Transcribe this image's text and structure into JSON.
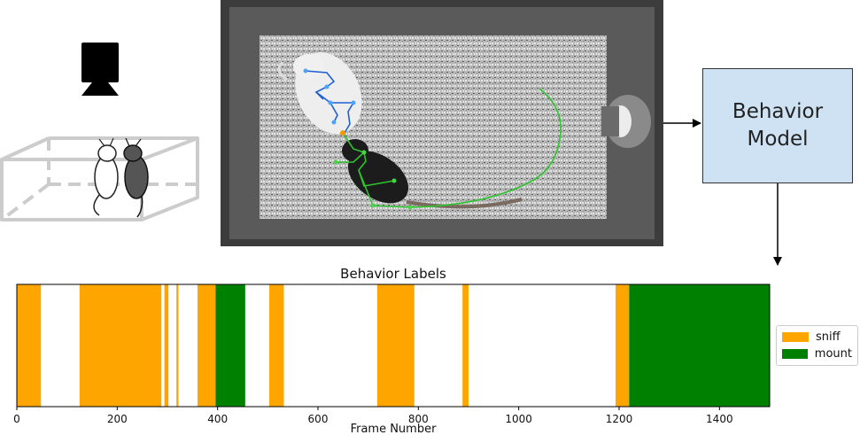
{
  "diagram": {
    "model_box": {
      "line1": "Behavior",
      "line2": "Model"
    }
  },
  "chart_data": {
    "type": "bar",
    "title": "Behavior Labels",
    "xlabel": "Frame Number",
    "ylabel": "",
    "xlim": [
      0,
      1500
    ],
    "xticks": [
      0,
      200,
      400,
      600,
      800,
      1000,
      1200,
      1400
    ],
    "series": [
      {
        "name": "sniff",
        "color": "#ffa500",
        "intervals": [
          [
            0,
            48
          ],
          [
            125,
            288
          ],
          [
            294,
            302
          ],
          [
            318,
            322
          ],
          [
            360,
            396
          ],
          [
            503,
            532
          ],
          [
            718,
            792
          ],
          [
            888,
            900
          ],
          [
            1193,
            1220
          ]
        ]
      },
      {
        "name": "mount",
        "color": "#008000",
        "intervals": [
          [
            396,
            455
          ],
          [
            1220,
            1500
          ]
        ]
      }
    ],
    "legend_position": "right"
  }
}
